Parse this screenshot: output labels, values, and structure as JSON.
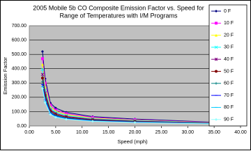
{
  "chart_data": {
    "type": "line",
    "title": [
      "2005 Mobile 5b CO Composite Emission Factor vs. Speed for",
      "Range of Temperatures with I/M Programs"
    ],
    "xlabel": "Speed (mph)",
    "ylabel": "Emission Factor",
    "x": [
      2.5,
      3,
      4,
      5,
      7,
      12,
      20,
      36
    ],
    "series": [
      {
        "name": "0 F",
        "color": "#000080",
        "values": [
          520,
          330,
          160,
          125,
          95,
          65,
          48,
          25
        ]
      },
      {
        "name": "10 F",
        "color": "#ff00ff",
        "values": [
          470,
          300,
          145,
          112,
          86,
          59,
          43,
          23
        ]
      },
      {
        "name": "20 F",
        "color": "#ffff00",
        "values": [
          430,
          275,
          133,
          103,
          79,
          54,
          40,
          21
        ]
      },
      {
        "name": "30 F",
        "color": "#00ffff",
        "values": [
          395,
          250,
          122,
          95,
          72,
          50,
          37,
          20
        ]
      },
      {
        "name": "40 F",
        "color": "#800080",
        "values": [
          360,
          230,
          112,
          87,
          66,
          46,
          34,
          19
        ]
      },
      {
        "name": "50 F",
        "color": "#800000",
        "values": [
          335,
          212,
          104,
          80,
          61,
          42,
          31,
          18
        ]
      },
      {
        "name": "60 F",
        "color": "#008080",
        "values": [
          310,
          196,
          96,
          74,
          56,
          39,
          29,
          17
        ]
      },
      {
        "name": "70 F",
        "color": "#0000ff",
        "values": [
          290,
          182,
          90,
          69,
          52,
          36,
          27,
          16
        ]
      },
      {
        "name": "80 F",
        "color": "#00ccff",
        "values": [
          275,
          172,
          85,
          65,
          49,
          34,
          25,
          15
        ]
      },
      {
        "name": "90 F",
        "color": "#99ffff",
        "values": [
          262,
          163,
          80,
          61,
          46,
          32,
          24,
          14
        ]
      }
    ],
    "xlim": [
      0,
      40
    ],
    "xticks": [
      {
        "value": 0,
        "label": "0.00"
      },
      {
        "value": 5,
        "label": "5.00"
      },
      {
        "value": 10,
        "label": "10.00"
      },
      {
        "value": 15,
        "label": "15.00"
      },
      {
        "value": 20,
        "label": "20.00"
      },
      {
        "value": 25,
        "label": "25.00"
      },
      {
        "value": 30,
        "label": "30.00"
      },
      {
        "value": 35,
        "label": "35.00"
      },
      {
        "value": 40,
        "label": "40.00"
      }
    ],
    "ylim": [
      0,
      700
    ],
    "yticks": [
      {
        "value": 0,
        "label": "0.00"
      },
      {
        "value": 100,
        "label": "100.00"
      },
      {
        "value": 200,
        "label": "200.00"
      },
      {
        "value": 300,
        "label": "300.00"
      },
      {
        "value": 400,
        "label": "400.00"
      },
      {
        "value": 500,
        "label": "500.00"
      },
      {
        "value": 600,
        "label": "600.00"
      },
      {
        "value": 700,
        "label": "700.00"
      }
    ],
    "grid": true,
    "legend": "right"
  }
}
